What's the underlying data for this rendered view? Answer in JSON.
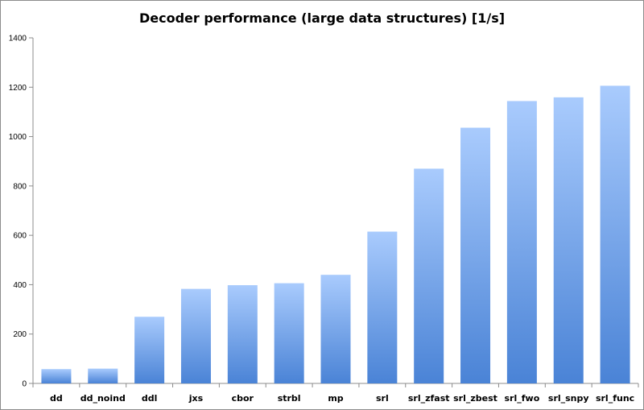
{
  "chart_data": {
    "type": "bar",
    "title": "Decoder performance (large data structures) [1/s]",
    "xlabel": "",
    "ylabel": "",
    "categories": [
      "dd",
      "dd_noind",
      "ddl",
      "jxs",
      "cbor",
      "strbl",
      "mp",
      "srl",
      "srl_zfast",
      "srl_zbest",
      "srl_fwo",
      "srl_snpy",
      "srl_func"
    ],
    "values": [
      58,
      60,
      270,
      383,
      398,
      406,
      440,
      615,
      870,
      1036,
      1144,
      1159,
      1206
    ],
    "ylim": [
      0,
      1400
    ],
    "yticks": [
      0,
      200,
      400,
      600,
      800,
      1000,
      1200,
      1400
    ],
    "grid": false,
    "legend": "none",
    "colors": {
      "bar_top": "#a9cbfd",
      "bar_bottom": "#4a83d6",
      "axis": "#8c8c8c"
    }
  }
}
